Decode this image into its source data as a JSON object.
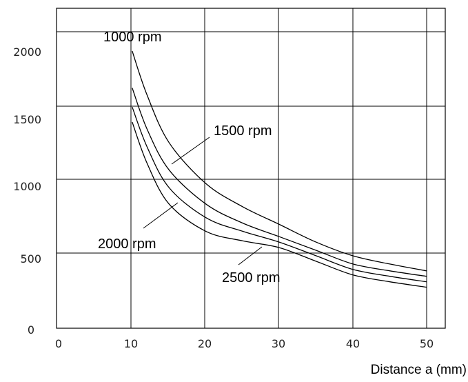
{
  "chart_data": {
    "type": "line",
    "xlabel": "Distance a (mm)",
    "ylabel": "",
    "xlim": [
      0,
      55
    ],
    "ylim": [
      0,
      2200
    ],
    "x_ticks": [
      "0",
      "10",
      "20",
      "30",
      "40",
      "50"
    ],
    "y_ticks": [
      "0",
      "500",
      "1000",
      "1500",
      "2000"
    ],
    "grid": true,
    "series": [
      {
        "name": "1000 rpm",
        "x": [
          10,
          12,
          15,
          20,
          25,
          30,
          35,
          40,
          45,
          50
        ],
        "values": [
          2020,
          1700,
          1350,
          1050,
          880,
          750,
          620,
          520,
          460,
          410
        ]
      },
      {
        "name": "1500 rpm",
        "x": [
          10,
          12,
          15,
          20,
          25,
          30,
          35,
          40,
          45,
          50
        ],
        "values": [
          1750,
          1450,
          1150,
          900,
          760,
          660,
          560,
          460,
          410,
          370
        ]
      },
      {
        "name": "2000 rpm",
        "x": [
          10,
          12,
          15,
          20,
          25,
          30,
          35,
          40,
          45,
          50
        ],
        "values": [
          1610,
          1320,
          1020,
          800,
          700,
          620,
          520,
          420,
          370,
          330
        ]
      },
      {
        "name": "2500 rpm",
        "x": [
          10,
          12,
          15,
          20,
          25,
          30,
          35,
          40,
          45,
          50
        ],
        "values": [
          1500,
          1200,
          900,
          700,
          630,
          580,
          480,
          380,
          330,
          290
        ]
      }
    ]
  }
}
